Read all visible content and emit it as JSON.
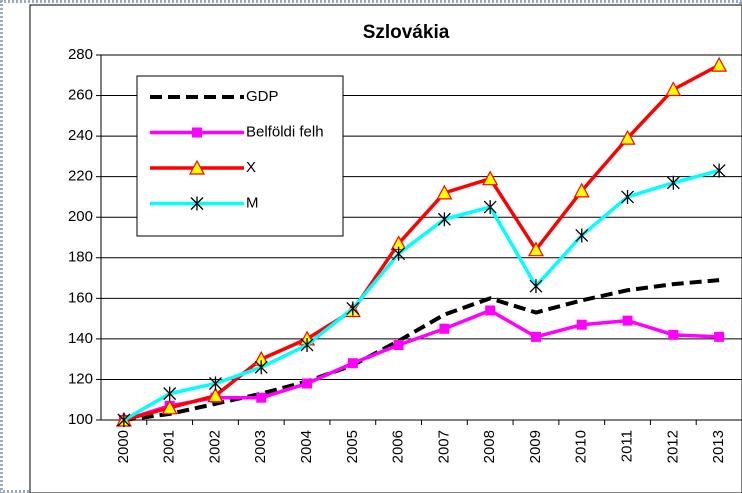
{
  "chart_data": {
    "type": "line",
    "title": "Szlovákia",
    "categories": [
      "2000",
      "2001",
      "2002",
      "2003",
      "2004",
      "2005",
      "2006",
      "2007",
      "2008",
      "2009",
      "2010",
      "2011",
      "2012",
      "2013"
    ],
    "series": [
      {
        "name": "GDP",
        "color": "#000000",
        "dashed": true,
        "marker": "none",
        "values": [
          100,
          103,
          108,
          113,
          119,
          127,
          139,
          152,
          160,
          153,
          159,
          164,
          167,
          169
        ]
      },
      {
        "name": "Belföldi felh",
        "color": "#ff00ff",
        "marker": "square",
        "values": [
          100,
          107,
          111,
          111,
          118,
          128,
          137,
          145,
          154,
          141,
          147,
          149,
          142,
          141
        ]
      },
      {
        "name": "X",
        "color": "#ff0000",
        "marker": "triangle",
        "values": [
          100,
          106,
          112,
          130,
          140,
          154,
          187,
          212,
          219,
          184,
          213,
          239,
          263,
          275
        ]
      },
      {
        "name": "M",
        "color": "#00ffff",
        "marker": "star",
        "values": [
          100,
          113,
          118,
          126,
          137,
          155,
          182,
          199,
          205,
          166,
          191,
          210,
          217,
          223
        ]
      }
    ],
    "ylim": [
      100,
      280
    ],
    "yticks": [
      100,
      120,
      140,
      160,
      180,
      200,
      220,
      240,
      260,
      280
    ],
    "grid": true
  }
}
